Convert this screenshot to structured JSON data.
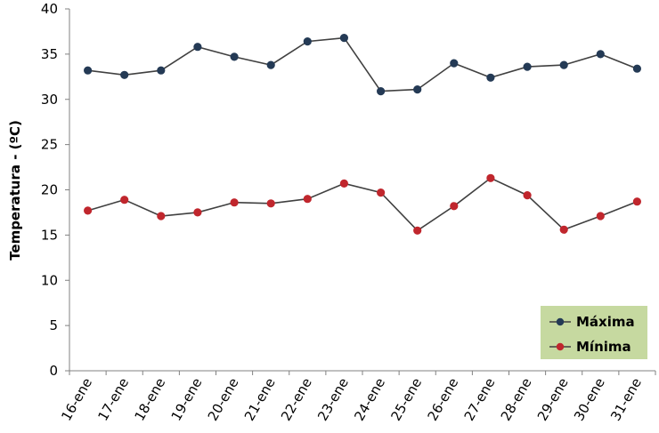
{
  "chart_data": {
    "type": "line",
    "title": "",
    "xlabel": "",
    "ylabel": "Temperatura - (ºC)",
    "ylim": [
      0,
      40
    ],
    "yticks": [
      0,
      5,
      10,
      15,
      20,
      25,
      30,
      35,
      40
    ],
    "grid": false,
    "legend_position": "bottom-right",
    "categories": [
      "16-ene",
      "17-ene",
      "18-ene",
      "19-ene",
      "20-ene",
      "21-ene",
      "22-ene",
      "23-ene",
      "24-ene",
      "25-ene",
      "26-ene",
      "27-ene",
      "28-ene",
      "29-ene",
      "30-ene",
      "31-ene"
    ],
    "series": [
      {
        "name": "Máxima",
        "color": "#243a55",
        "values": [
          33.2,
          32.7,
          33.2,
          35.8,
          34.7,
          33.8,
          36.4,
          36.8,
          30.9,
          31.1,
          34.0,
          32.4,
          33.6,
          33.8,
          35.0,
          33.4
        ]
      },
      {
        "name": "Mínima",
        "color": "#c0262d",
        "values": [
          17.7,
          18.9,
          17.1,
          17.5,
          18.6,
          18.5,
          19.0,
          20.7,
          19.7,
          15.5,
          18.2,
          21.3,
          19.4,
          15.6,
          17.1,
          18.7
        ]
      }
    ],
    "line_color": "#404040",
    "legend_background": "#c6d9a0"
  }
}
